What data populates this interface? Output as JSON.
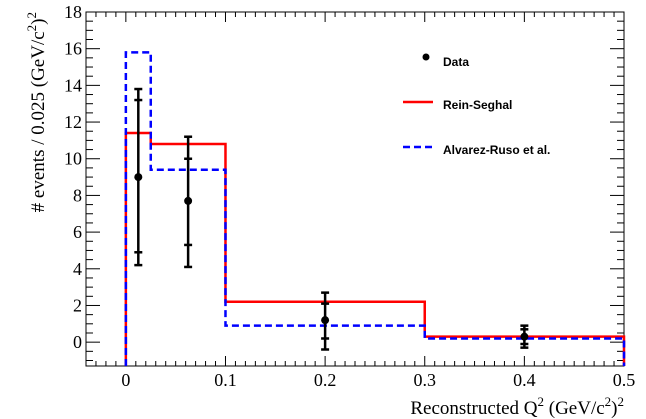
{
  "chart_data": {
    "type": "line",
    "xlabel": "Reconstructed Q",
    "xlabel_sup1": "2",
    "xlabel_unit": " (GeV/c",
    "xlabel_sup2": "2",
    "xlabel_end": ")",
    "ylabel": "# events / 0.025 (GeV/c",
    "ylabel_sup1": "2",
    "ylabel_end": ")",
    "ylabel_sup2": "2",
    "xlim": [
      -0.04,
      0.5
    ],
    "ylim": [
      -1.3,
      18
    ],
    "xticks": [
      0,
      0.1,
      0.2,
      0.3,
      0.4,
      0.5
    ],
    "xtick_labels": [
      "0",
      "0.1",
      "0.2",
      "0.3",
      "0.4",
      "0.5"
    ],
    "yticks": [
      0,
      2,
      4,
      6,
      8,
      10,
      12,
      14,
      16,
      18
    ],
    "ytick_labels": [
      "0",
      "2",
      "4",
      "6",
      "8",
      "10",
      "12",
      "14",
      "16",
      "18"
    ],
    "legend_placement": "top-right",
    "data": {
      "name": "Data",
      "color": "#000000",
      "points": [
        {
          "x": 0.0125,
          "y": 9.0,
          "stat_low": 4.9,
          "stat_high": 13.2,
          "tot_low": 4.2,
          "tot_high": 13.8
        },
        {
          "x": 0.0625,
          "y": 7.7,
          "stat_low": 5.3,
          "stat_high": 10.0,
          "tot_low": 4.1,
          "tot_high": 11.2
        },
        {
          "x": 0.2,
          "y": 1.2,
          "stat_low": 0.2,
          "stat_high": 2.1,
          "tot_low": -0.4,
          "tot_high": 2.7
        },
        {
          "x": 0.4,
          "y": 0.3,
          "stat_low": -0.1,
          "stat_high": 0.7,
          "tot_low": -0.3,
          "tot_high": 0.9
        }
      ]
    },
    "series": [
      {
        "name": "Rein-Seghal",
        "color": "#ff0000",
        "style": "solid",
        "bins": [
          {
            "x0": 0.0,
            "x1": 0.025,
            "y": 11.4
          },
          {
            "x0": 0.025,
            "x1": 0.1,
            "y": 10.8
          },
          {
            "x0": 0.1,
            "x1": 0.3,
            "y": 2.2
          },
          {
            "x0": 0.3,
            "x1": 0.5,
            "y": 0.3
          }
        ]
      },
      {
        "name": "Alvarez-Ruso et al.",
        "color": "#0000ff",
        "style": "dashed",
        "bins": [
          {
            "x0": 0.0,
            "x1": 0.025,
            "y": 15.8
          },
          {
            "x0": 0.025,
            "x1": 0.1,
            "y": 9.4
          },
          {
            "x0": 0.1,
            "x1": 0.3,
            "y": 0.9
          },
          {
            "x0": 0.3,
            "x1": 0.5,
            "y": 0.2
          }
        ]
      }
    ]
  }
}
